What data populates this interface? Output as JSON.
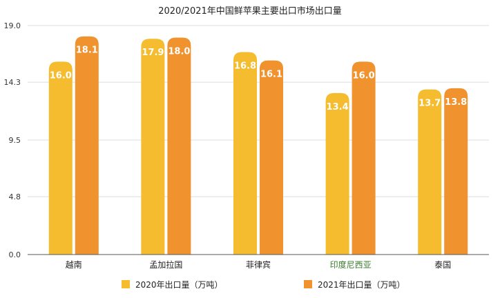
{
  "chart_data": {
    "type": "bar",
    "title": "2020/2021年中国鲜苹果主要出口市场出口量",
    "categories": [
      "越南",
      "孟加拉国",
      "菲律宾",
      "印度尼西亚",
      "泰国"
    ],
    "category_colors": [
      "#222222",
      "#222222",
      "#222222",
      "#3a7d2c",
      "#222222"
    ],
    "series": [
      {
        "name": "2020年出口量（万吨）",
        "values": [
          16.0,
          17.9,
          16.8,
          13.4,
          13.7
        ],
        "color": "#F4BC2E"
      },
      {
        "name": "2021年出口量（万吨）",
        "values": [
          18.1,
          18.0,
          16.1,
          16.0,
          13.8
        ],
        "color": "#F0922D"
      }
    ],
    "y_ticks": [
      "0.0",
      "4.8",
      "9.5",
      "14.3",
      "19.0"
    ],
    "ylim": [
      0,
      19.0
    ],
    "grid": true,
    "legend": "bottom",
    "xlabel": "",
    "ylabel": ""
  }
}
